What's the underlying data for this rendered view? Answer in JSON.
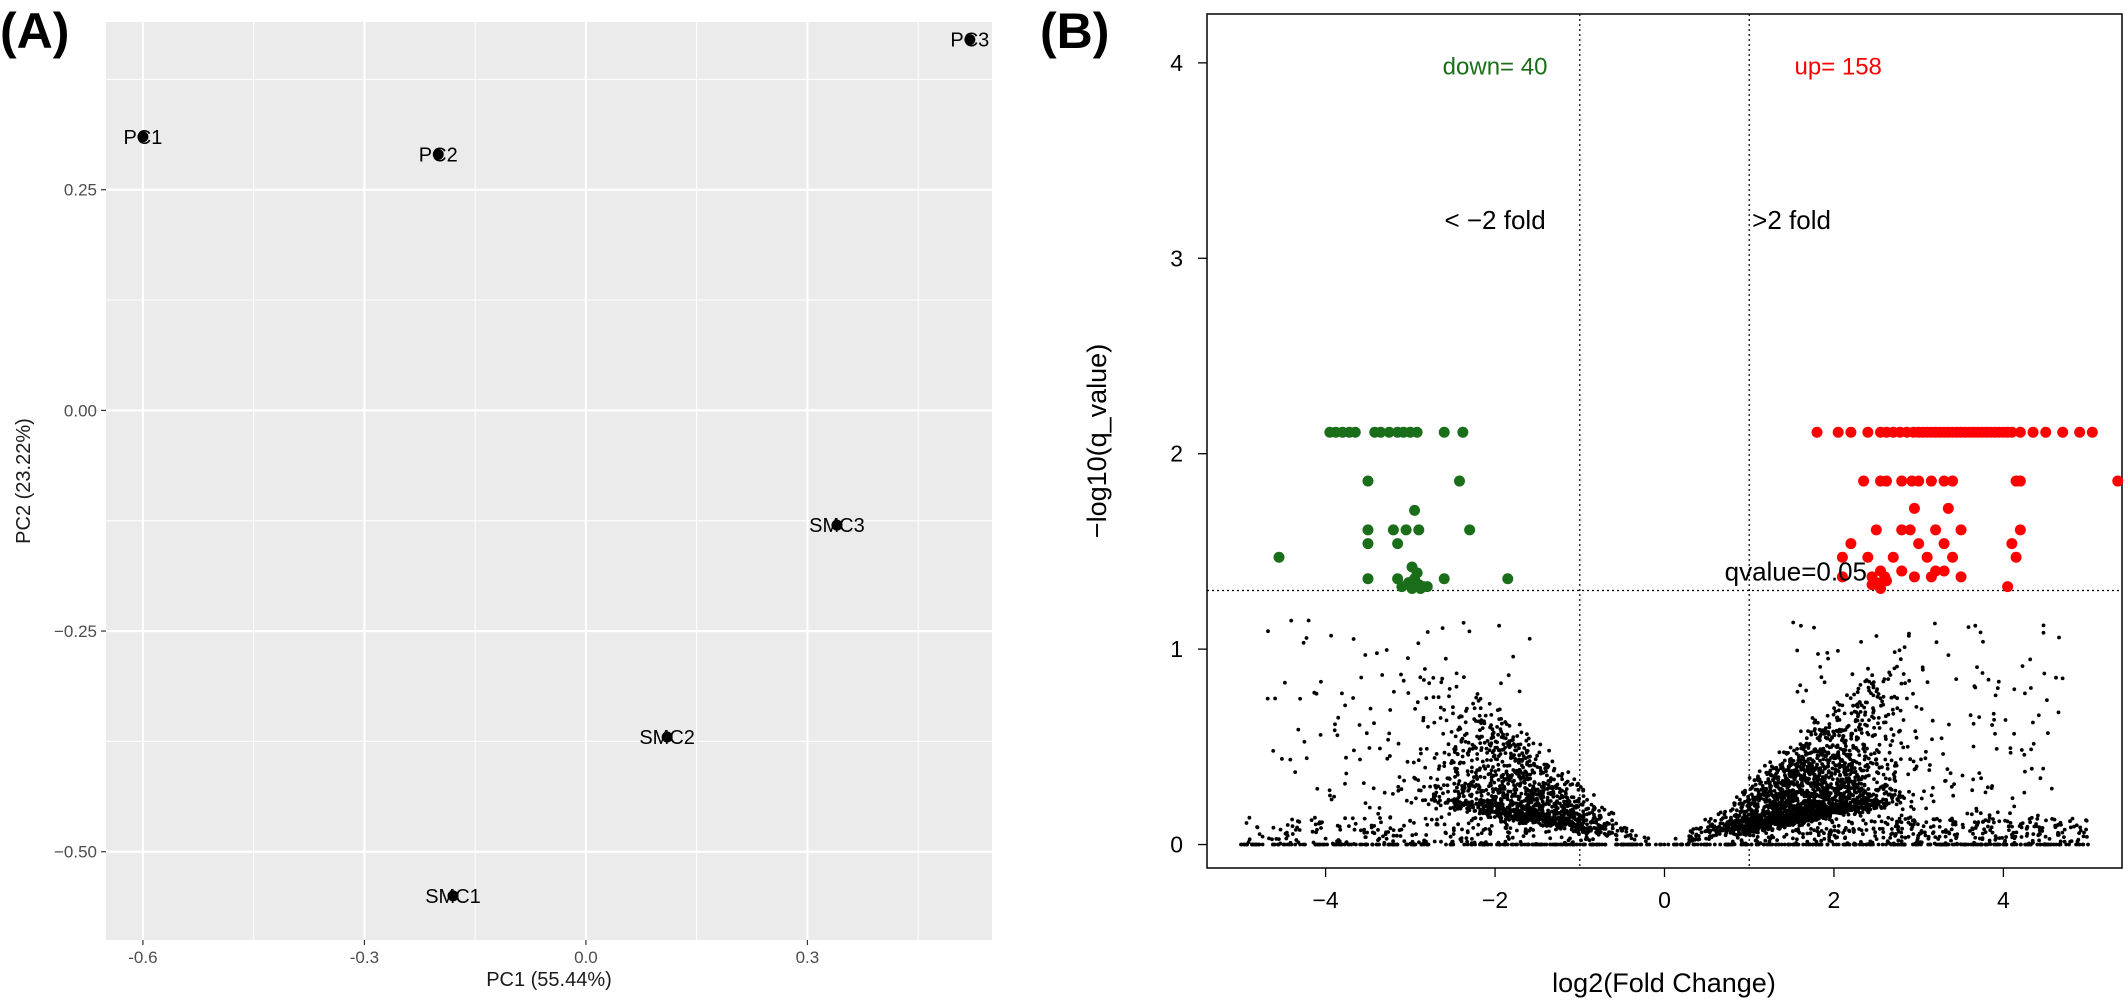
{
  "colors": {
    "panel_bg": "#ebebeb",
    "grid": "#ffffff",
    "down": "#1a6e1a",
    "up": "#ff0000",
    "ns": "#000000"
  },
  "chart_data": [
    {
      "panel_label": "(A)",
      "type": "scatter",
      "title": "",
      "xlabel": "PC1 (55.44%)",
      "ylabel": "PC2 (23.22%)",
      "xlim": [
        -0.65,
        0.55
      ],
      "ylim": [
        -0.6,
        0.44
      ],
      "xticks": [
        -0.6,
        -0.3,
        0.0,
        0.3
      ],
      "xtick_labels": [
        "-0.6",
        "-0.3",
        "0.0",
        "0.3"
      ],
      "yticks": [
        0.25,
        0.0,
        -0.25,
        -0.5
      ],
      "ytick_labels": [
        "0.25",
        "0.00",
        "−0.25",
        "−0.50"
      ],
      "grid": true,
      "points": [
        {
          "label": "PC1",
          "x": -0.6,
          "y": 0.31
        },
        {
          "label": "PC2",
          "x": -0.2,
          "y": 0.29
        },
        {
          "label": "PC3",
          "x": 0.52,
          "y": 0.42
        },
        {
          "label": "SMC1",
          "x": -0.18,
          "y": -0.55
        },
        {
          "label": "SMC2",
          "x": 0.11,
          "y": -0.37
        },
        {
          "label": "SMC3",
          "x": 0.34,
          "y": -0.13
        }
      ]
    },
    {
      "panel_label": "(B)",
      "type": "scatter",
      "title": "",
      "xlabel": "log2(Fold Change)",
      "ylabel": "−log10(q_value)",
      "xlim": [
        -5.4,
        5.4
      ],
      "ylim": [
        -0.12,
        4.25
      ],
      "xticks": [
        -4,
        -2,
        0,
        2,
        4
      ],
      "xtick_labels": [
        "−4",
        "−2",
        "0",
        "2",
        "4"
      ],
      "yticks": [
        0,
        1,
        2,
        3,
        4
      ],
      "ytick_labels": [
        "0",
        "1",
        "2",
        "3",
        "4"
      ],
      "grid": false,
      "vlines": [
        -1,
        1
      ],
      "hline": 1.3,
      "annotations": {
        "down_count": "down= 40",
        "up_count": "up= 158",
        "left_fold": "< −2 fold",
        "right_fold": ">2 fold",
        "qvalue": "qvalue=0.05"
      },
      "down_points": [
        [
          -3.95,
          2.11
        ],
        [
          -3.88,
          2.11
        ],
        [
          -3.8,
          2.11
        ],
        [
          -3.72,
          2.11
        ],
        [
          -3.65,
          2.11
        ],
        [
          -3.42,
          2.11
        ],
        [
          -3.35,
          2.11
        ],
        [
          -3.25,
          2.11
        ],
        [
          -3.15,
          2.11
        ],
        [
          -3.08,
          2.11
        ],
        [
          -3.0,
          2.11
        ],
        [
          -2.92,
          2.11
        ],
        [
          -2.6,
          2.11
        ],
        [
          -2.38,
          2.11
        ],
        [
          -3.5,
          1.86
        ],
        [
          -2.42,
          1.86
        ],
        [
          -2.95,
          1.71
        ],
        [
          -3.5,
          1.61
        ],
        [
          -3.2,
          1.61
        ],
        [
          -3.05,
          1.61
        ],
        [
          -2.9,
          1.61
        ],
        [
          -2.3,
          1.61
        ],
        [
          -3.5,
          1.54
        ],
        [
          -3.15,
          1.54
        ],
        [
          -4.55,
          1.47
        ],
        [
          -2.98,
          1.42
        ],
        [
          -2.92,
          1.39
        ],
        [
          -3.5,
          1.36
        ],
        [
          -3.15,
          1.36
        ],
        [
          -2.95,
          1.36
        ],
        [
          -2.6,
          1.36
        ],
        [
          -1.85,
          1.36
        ],
        [
          -3.02,
          1.34
        ],
        [
          -2.96,
          1.33
        ],
        [
          -2.9,
          1.33
        ],
        [
          -2.85,
          1.32
        ],
        [
          -2.98,
          1.31
        ],
        [
          -2.88,
          1.31
        ],
        [
          -3.1,
          1.32
        ],
        [
          -2.8,
          1.32
        ]
      ],
      "up_points": [
        [
          2.35,
          1.86
        ],
        [
          2.55,
          1.86
        ],
        [
          2.62,
          1.86
        ],
        [
          2.8,
          1.86
        ],
        [
          2.92,
          1.86
        ],
        [
          3.0,
          1.86
        ],
        [
          3.15,
          1.86
        ],
        [
          3.3,
          1.86
        ],
        [
          3.4,
          1.86
        ],
        [
          4.15,
          1.86
        ],
        [
          4.2,
          1.86
        ],
        [
          5.35,
          1.86
        ],
        [
          2.95,
          1.72
        ],
        [
          3.35,
          1.72
        ],
        [
          2.5,
          1.61
        ],
        [
          2.8,
          1.61
        ],
        [
          2.9,
          1.61
        ],
        [
          3.2,
          1.61
        ],
        [
          3.5,
          1.61
        ],
        [
          4.2,
          1.61
        ],
        [
          2.2,
          1.54
        ],
        [
          3.0,
          1.54
        ],
        [
          3.3,
          1.54
        ],
        [
          4.1,
          1.54
        ],
        [
          2.1,
          1.47
        ],
        [
          2.4,
          1.47
        ],
        [
          2.7,
          1.47
        ],
        [
          3.1,
          1.47
        ],
        [
          3.4,
          1.47
        ],
        [
          4.15,
          1.47
        ],
        [
          2.55,
          1.4
        ],
        [
          2.8,
          1.4
        ],
        [
          3.2,
          1.4
        ],
        [
          3.3,
          1.4
        ],
        [
          2.1,
          1.37
        ],
        [
          2.45,
          1.37
        ],
        [
          2.6,
          1.37
        ],
        [
          2.95,
          1.37
        ],
        [
          3.15,
          1.37
        ],
        [
          3.5,
          1.37
        ],
        [
          2.45,
          1.33
        ],
        [
          2.55,
          1.31
        ],
        [
          4.05,
          1.32
        ],
        [
          2.62,
          1.35
        ],
        [
          2.5,
          1.34
        ]
      ],
      "up_top_row_y": 2.11,
      "up_top_row_x": [
        1.8,
        2.05,
        2.2,
        2.4,
        2.55,
        2.62,
        2.7,
        2.78,
        2.86,
        2.94,
        3.0,
        3.05,
        3.1,
        3.15,
        3.2,
        3.25,
        3.3,
        3.35,
        3.4,
        3.45,
        3.5,
        3.55,
        3.6,
        3.65,
        3.7,
        3.75,
        3.8,
        3.85,
        3.9,
        3.95,
        4.0,
        4.05,
        4.1,
        4.2,
        4.35,
        4.5,
        4.7,
        4.9,
        5.05
      ]
    }
  ]
}
